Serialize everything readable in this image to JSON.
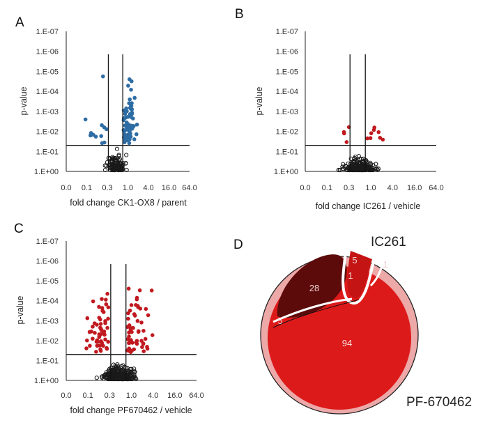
{
  "colors": {
    "sig_blue": "#2e6ca4",
    "sig_red": "#c0191f",
    "open_point": "#1a1a1a",
    "venn_outer": "#eda8a8",
    "venn_main": "#dd1a1a",
    "venn_dark": "#5c0a0a",
    "venn_mid": "#c41414",
    "venn_text_light": "#f0d0d0"
  },
  "chart_data": [
    {
      "type": "scatter",
      "panel": "A",
      "ylabel": "p-value",
      "xlabel": "fold change  CK1-OX8 / parent",
      "x_ticks": [
        "0.0",
        "0.1",
        "0.3",
        "1.0",
        "4.0",
        "16.0",
        "64.0"
      ],
      "y_ticks": [
        "1.E-07",
        "1.E-06",
        "1.E-05",
        "1.E-04",
        "1.E-03",
        "1.E-02",
        "1.E-01",
        "1.E+00"
      ],
      "x_scale": "log4",
      "y_scale": "log10-reversed",
      "xlim": [
        0.0625,
        64
      ],
      "ylim": [
        1.0,
        1e-07
      ],
      "fold_cutoffs": [
        0.667,
        1.5
      ],
      "p_cutoff": 0.05,
      "significant_color": "sig_blue",
      "n_significant": 80,
      "n_nonsignificant": 110,
      "sig_spread": [
        0.8,
        1.0
      ],
      "ns_spread": [
        0.55,
        0.75
      ],
      "seed": 11
    },
    {
      "type": "scatter",
      "panel": "B",
      "ylabel": "p-value",
      "xlabel": "fold change  IC261 / vehicle",
      "x_ticks": [
        "0.0",
        "0.1",
        "0.3",
        "1.0",
        "4.0",
        "16.0",
        "64.0"
      ],
      "y_ticks": [
        "1.E-07",
        "1.E-06",
        "1.E-05",
        "1.E-04",
        "1.E-03",
        "1.E-02",
        "1.E-01",
        "1.E+00"
      ],
      "x_scale": "log4",
      "y_scale": "log10-reversed",
      "xlim": [
        0.0625,
        64
      ],
      "ylim": [
        1.0,
        1e-07
      ],
      "fold_cutoffs": [
        0.667,
        1.5
      ],
      "p_cutoff": 0.05,
      "significant_color": "sig_red",
      "n_significant": 12,
      "n_nonsignificant": 230,
      "sig_spread": [
        0.8,
        0.5
      ],
      "ns_spread": [
        0.9,
        0.45
      ],
      "seed": 23
    },
    {
      "type": "scatter",
      "panel": "C",
      "ylabel": "p-value",
      "xlabel": "fold change  PF670462 / vehicle",
      "x_ticks": [
        "0.0",
        "0.1",
        "0.3",
        "1.0",
        "4.0",
        "16.0",
        "64.0"
      ],
      "y_ticks": [
        "1.E-07",
        "1.E-06",
        "1.E-05",
        "1.E-04",
        "1.E-03",
        "1.E-02",
        "1.E-01",
        "1.E+00"
      ],
      "x_scale": "log4",
      "y_scale": "log10-reversed",
      "xlim": [
        0.0625,
        64
      ],
      "ylim": [
        1.0,
        1e-07
      ],
      "fold_cutoffs": [
        0.667,
        1.5
      ],
      "p_cutoff": 0.05,
      "significant_color": "sig_red",
      "n_significant": 110,
      "n_nonsignificant": 260,
      "sig_spread": [
        1.1,
        1.0
      ],
      "ns_spread": [
        0.85,
        0.6
      ],
      "seed": 37
    },
    {
      "type": "venn",
      "panel": "D",
      "sets": [
        "IC261",
        "PF-670462"
      ],
      "regions": [
        {
          "label": "28"
        },
        {
          "label": "5"
        },
        {
          "label": "1"
        },
        {
          "label": "1"
        },
        {
          "label": "5"
        },
        {
          "label": "94"
        }
      ]
    }
  ]
}
